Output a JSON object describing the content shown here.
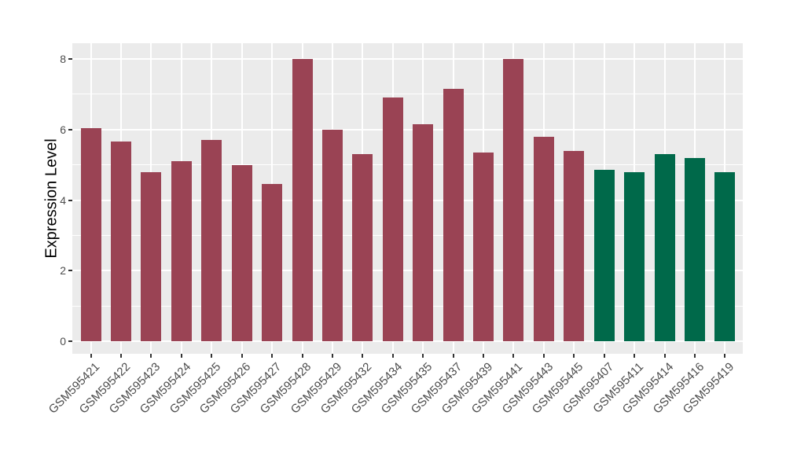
{
  "figure": {
    "background": "#FFFFFF",
    "panel_background": "#EBEBEB",
    "gridline_color": "#FFFFFF",
    "tick_mark_color": "#333333",
    "axis_text_color": "#4D4D4D",
    "axis_title_color": "#000000",
    "maroon_group_color": "#9A4354",
    "green_group_color": "#00694A"
  },
  "chart_data": {
    "type": "bar",
    "title": "",
    "xlabel": "",
    "ylabel": "Expression Level",
    "ylim": [
      0,
      8.4
    ],
    "yticks_major": [
      0,
      2,
      4,
      6,
      8
    ],
    "yticks_minor": [
      1,
      3,
      5,
      7
    ],
    "grid": "on",
    "legend": "none",
    "x_label_angle_deg": 45,
    "categories": [
      "GSM595421",
      "GSM595422",
      "GSM595423",
      "GSM595424",
      "GSM595425",
      "GSM595426",
      "GSM595427",
      "GSM595428",
      "GSM595429",
      "GSM595432",
      "GSM595434",
      "GSM595435",
      "GSM595437",
      "GSM595439",
      "GSM595441",
      "GSM595443",
      "GSM595445",
      "GSM595407",
      "GSM595411",
      "GSM595414",
      "GSM595416",
      "GSM595419"
    ],
    "values": [
      6.05,
      5.65,
      4.8,
      5.1,
      5.7,
      5.0,
      4.45,
      8.0,
      6.0,
      5.3,
      6.9,
      6.15,
      7.15,
      5.35,
      8.0,
      5.8,
      5.4,
      4.85,
      4.8,
      5.3,
      5.2,
      4.8
    ],
    "bar_colors": [
      "#9A4354",
      "#9A4354",
      "#9A4354",
      "#9A4354",
      "#9A4354",
      "#9A4354",
      "#9A4354",
      "#9A4354",
      "#9A4354",
      "#9A4354",
      "#9A4354",
      "#9A4354",
      "#9A4354",
      "#9A4354",
      "#9A4354",
      "#9A4354",
      "#9A4354",
      "#00694A",
      "#00694A",
      "#00694A",
      "#00694A",
      "#00694A"
    ],
    "series": [
      {
        "name": "maroon-group",
        "color": "#9A4354",
        "categories": [
          "GSM595421",
          "GSM595422",
          "GSM595423",
          "GSM595424",
          "GSM595425",
          "GSM595426",
          "GSM595427",
          "GSM595428",
          "GSM595429",
          "GSM595432",
          "GSM595434",
          "GSM595435",
          "GSM595437",
          "GSM595439",
          "GSM595441",
          "GSM595443",
          "GSM595445"
        ],
        "values": [
          6.05,
          5.65,
          4.8,
          5.1,
          5.7,
          5.0,
          4.45,
          8.0,
          6.0,
          5.3,
          6.9,
          6.15,
          7.15,
          5.35,
          8.0,
          5.8,
          5.4
        ]
      },
      {
        "name": "green-group",
        "color": "#00694A",
        "categories": [
          "GSM595407",
          "GSM595411",
          "GSM595414",
          "GSM595416",
          "GSM595419"
        ],
        "values": [
          4.85,
          4.8,
          5.3,
          5.2,
          4.8
        ]
      }
    ]
  }
}
